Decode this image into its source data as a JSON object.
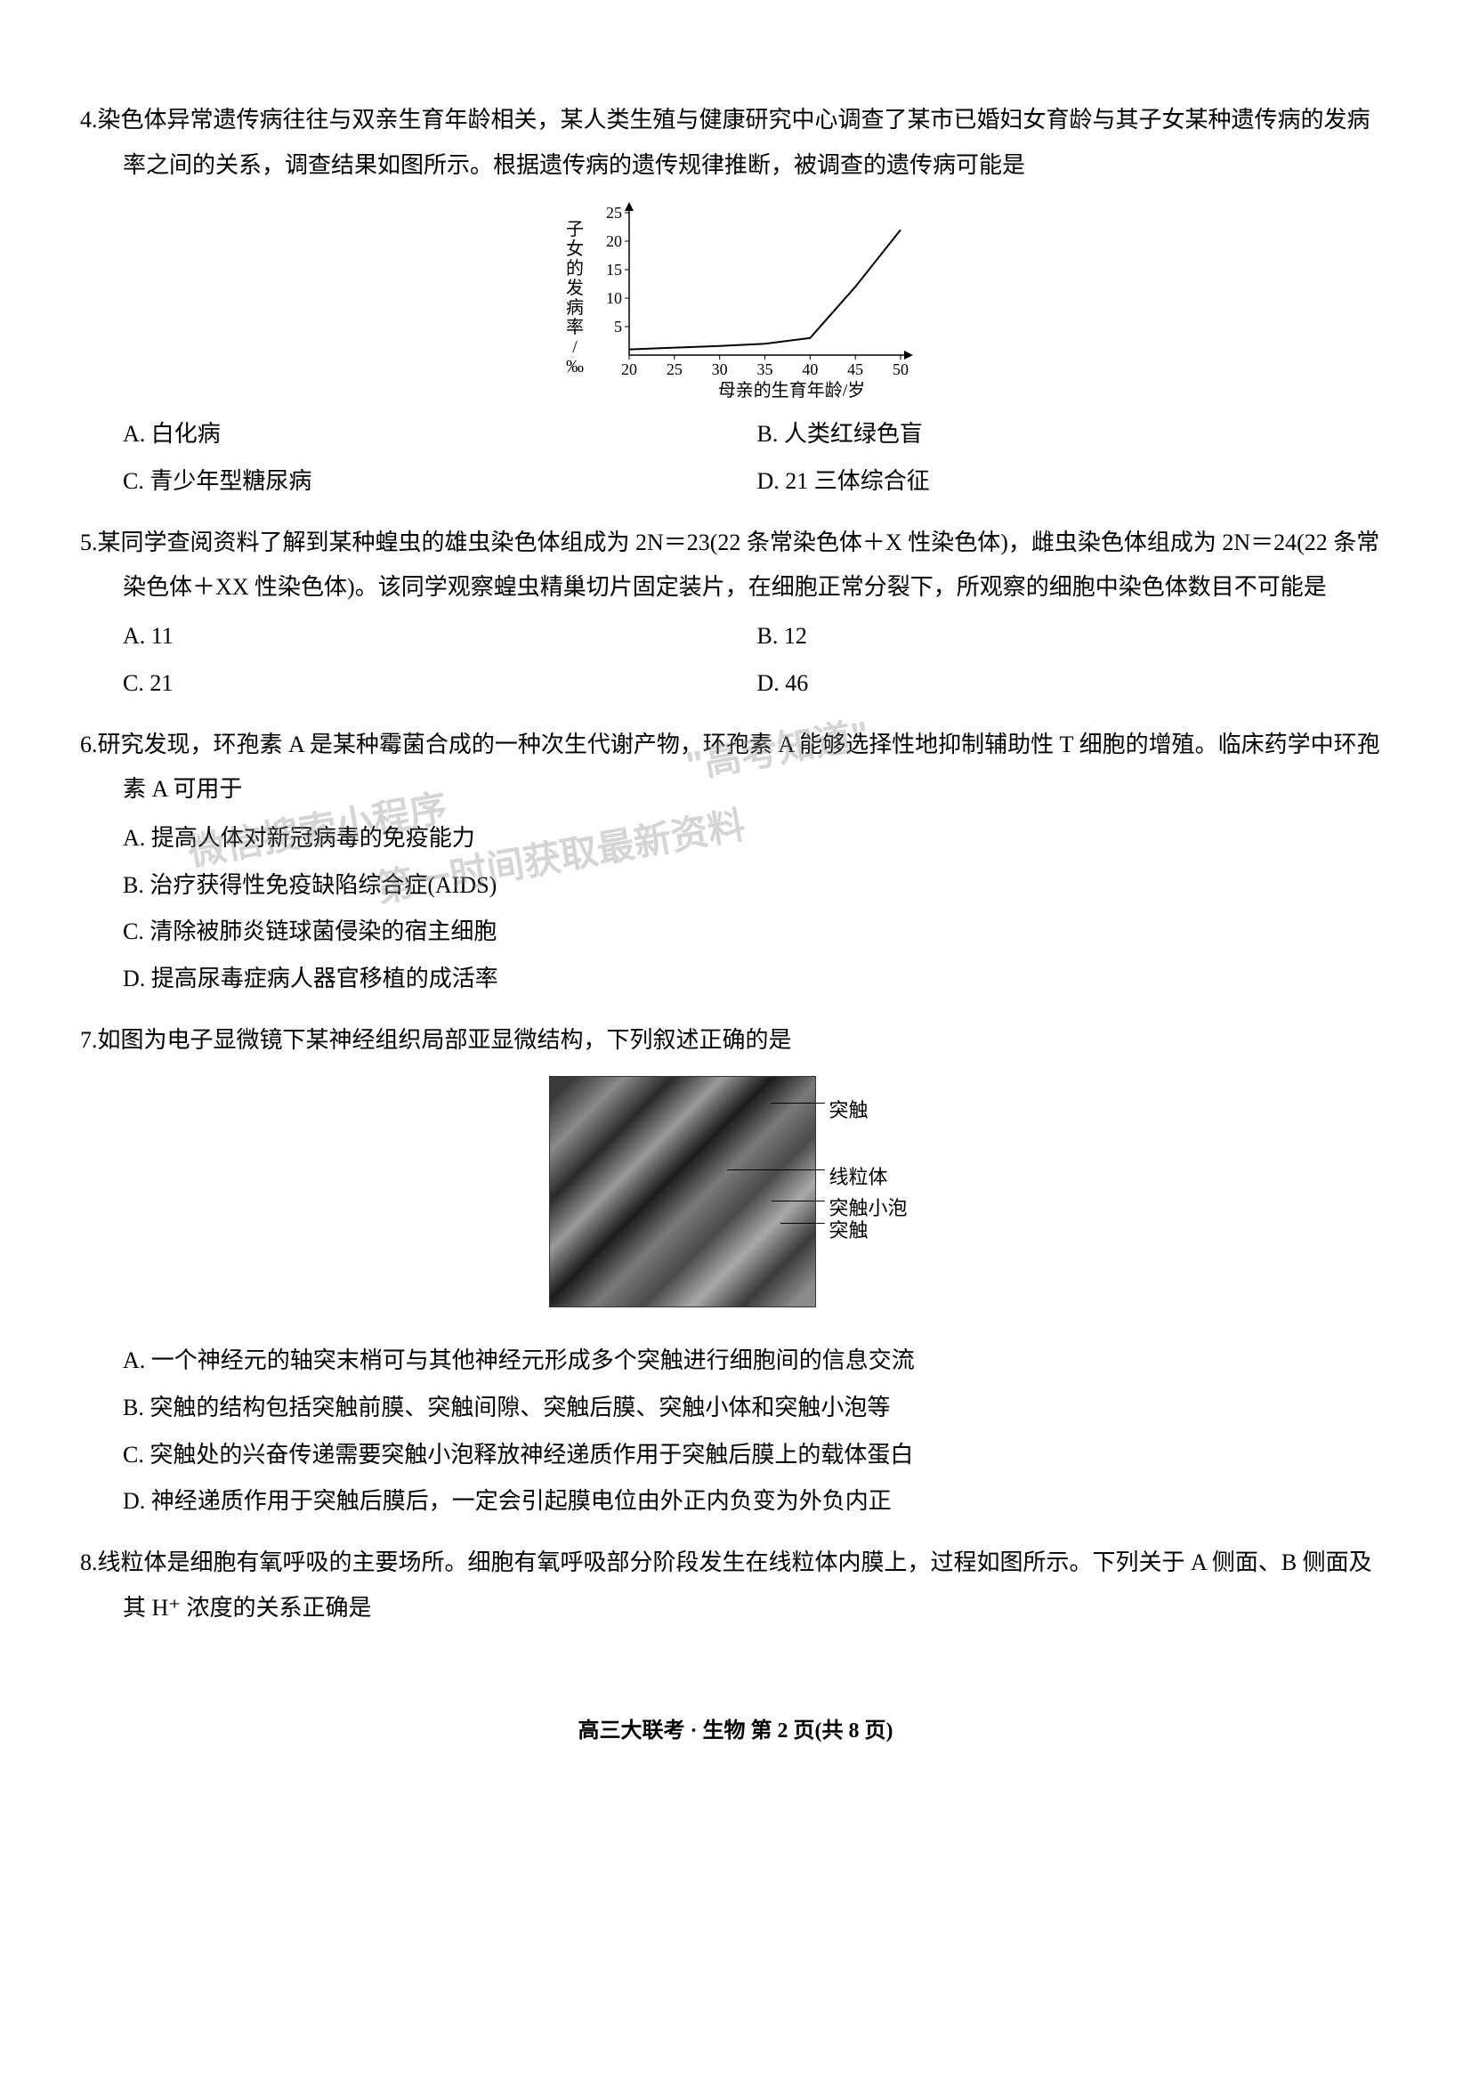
{
  "q4": {
    "num": "4.",
    "text": "染色体异常遗传病往往与双亲生育年龄相关，某人类生殖与健康研究中心调查了某市已婚妇女育龄与其子女某种遗传病的发病率之间的关系，调查结果如图所示。根据遗传病的遗传规律推断，被调查的遗传病可能是",
    "chart": {
      "y_label": "子女的发病率/‰",
      "x_label": "母亲的生育年龄/岁",
      "x_ticks": [
        "20",
        "25",
        "30",
        "35",
        "40",
        "45",
        "50"
      ],
      "y_ticks": [
        "5",
        "10",
        "15",
        "20",
        "25"
      ],
      "x_vals": [
        20,
        25,
        30,
        35,
        40,
        45,
        50
      ],
      "y_vals": [
        1,
        1.3,
        1.6,
        2,
        3,
        12,
        22
      ],
      "line_color": "#000000",
      "axis_color": "#000000",
      "tick_fontsize": 18,
      "label_fontsize": 20
    },
    "optA": "A. 白化病",
    "optB": "B. 人类红绿色盲",
    "optC": "C. 青少年型糖尿病",
    "optD": "D. 21 三体综合征"
  },
  "q5": {
    "num": "5.",
    "text": "某同学查阅资料了解到某种蝗虫的雄虫染色体组成为 2N＝23(22 条常染色体＋X 性染色体)，雌虫染色体组成为 2N＝24(22 条常染色体＋XX 性染色体)。该同学观察蝗虫精巢切片固定装片，在细胞正常分裂下，所观察的细胞中染色体数目不可能是",
    "optA": "A. 11",
    "optB": "B. 12",
    "optC": "C. 21",
    "optD": "D. 46"
  },
  "q6": {
    "num": "6.",
    "text": "研究发现，环孢素 A 是某种霉菌合成的一种次生代谢产物，环孢素 A 能够选择性地抑制辅助性 T 细胞的增殖。临床药学中环孢素 A 可用于",
    "optA": "A. 提高人体对新冠病毒的免疫能力",
    "optB": "B. 治疗获得性免疫缺陷综合症(AIDS)",
    "optC": "C. 清除被肺炎链球菌侵染的宿主细胞",
    "optD": "D. 提高尿毒症病人器官移植的成活率"
  },
  "q7": {
    "num": "7.",
    "text": "如图为电子显微镜下某神经组织局部亚显微结构，下列叙述正确的是",
    "labels": {
      "l1": "突触",
      "l2": "线粒体",
      "l3": "突触小泡",
      "l4": "突触"
    },
    "optA": "A. 一个神经元的轴突末梢可与其他神经元形成多个突触进行细胞间的信息交流",
    "optB": "B. 突触的结构包括突触前膜、突触间隙、突触后膜、突触小体和突触小泡等",
    "optC": "C. 突触处的兴奋传递需要突触小泡释放神经递质作用于突触后膜上的载体蛋白",
    "optD": "D. 神经递质作用于突触后膜后，一定会引起膜电位由外正内负变为外负内正"
  },
  "q8": {
    "num": "8.",
    "text": "线粒体是细胞有氧呼吸的主要场所。细胞有氧呼吸部分阶段发生在线粒体内膜上，过程如图所示。下列关于 A 侧面、B 侧面及其 H⁺ 浓度的关系正确是"
  },
  "watermarks": {
    "w1": "\"高考知道\"",
    "w2": "微信搜索小程序",
    "w3": "第一时间获取最新资料"
  },
  "footer": "高三大联考 · 生物 第 2 页(共 8 页)"
}
